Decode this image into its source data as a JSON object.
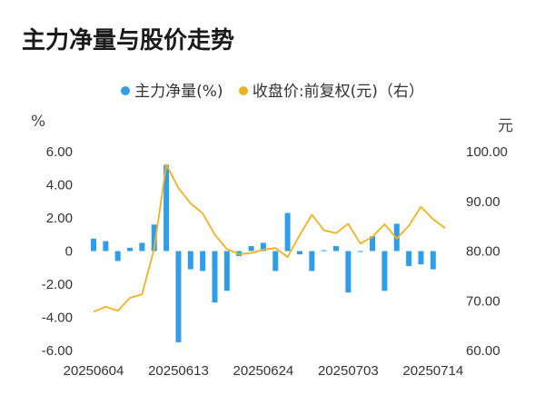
{
  "title": "主力净量与股价走势",
  "legend": {
    "bar_label": "主力净量(%)",
    "line_label": "收盘价:前复权(元)（右）"
  },
  "units": {
    "left": "%",
    "right": "元"
  },
  "colors": {
    "bar": "#2f9ee8",
    "line": "#f2b21d",
    "grid": "#d9d9d9",
    "text": "#333333"
  },
  "chart_data": {
    "type": "bar+line",
    "categories": [
      "20250604",
      "20250605",
      "20250606",
      "20250609",
      "20250610",
      "20250611",
      "20250612",
      "20250613",
      "20250616",
      "20250617",
      "20250618",
      "20250619",
      "20250620",
      "20250623",
      "20250624",
      "20250625",
      "20250626",
      "20250627",
      "20250630",
      "20250701",
      "20250702",
      "20250703",
      "20250704",
      "20250707",
      "20250708",
      "20250709",
      "20250710",
      "20250711",
      "20250714",
      "20250715"
    ],
    "x_tick_labels": [
      "20250604",
      "20250613",
      "20250624",
      "20250703",
      "20250714"
    ],
    "x_tick_indices": [
      0,
      7,
      14,
      21,
      28
    ],
    "series": [
      {
        "name": "主力净量(%)",
        "type": "bar",
        "axis": "left",
        "values": [
          0.75,
          0.6,
          -0.6,
          0.2,
          0.5,
          1.6,
          5.2,
          -5.5,
          -1.1,
          -1.2,
          -3.1,
          -2.4,
          -0.3,
          0.3,
          0.5,
          -1.2,
          2.3,
          -0.2,
          -1.2,
          0.05,
          0.3,
          -2.5,
          -0.05,
          0.9,
          -2.4,
          1.65,
          -0.9,
          -0.8,
          -1.1,
          null
        ]
      },
      {
        "name": "收盘价:前复权(元)（右）",
        "type": "line",
        "axis": "right",
        "values": [
          67.8,
          68.8,
          68.0,
          70.6,
          71.3,
          80.5,
          97.4,
          92.7,
          89.6,
          87.6,
          83.3,
          80.4,
          79.4,
          79.6,
          80.3,
          80.6,
          78.8,
          83.2,
          87.3,
          84.2,
          83.6,
          85.5,
          81.5,
          82.9,
          85.4,
          82.5,
          85.1,
          88.9,
          86.4,
          84.6
        ]
      }
    ],
    "y_left": {
      "ticks": [
        "6.00",
        "4.00",
        "2.00",
        "0",
        "-2.00",
        "-4.00",
        "-6.00"
      ],
      "range": [
        -6,
        6
      ]
    },
    "y_right": {
      "ticks": [
        "100.00",
        "90.00",
        "80.00",
        "70.00",
        "60.00"
      ],
      "range": [
        60,
        100
      ]
    },
    "grid": false,
    "legend_position": "top-center"
  }
}
